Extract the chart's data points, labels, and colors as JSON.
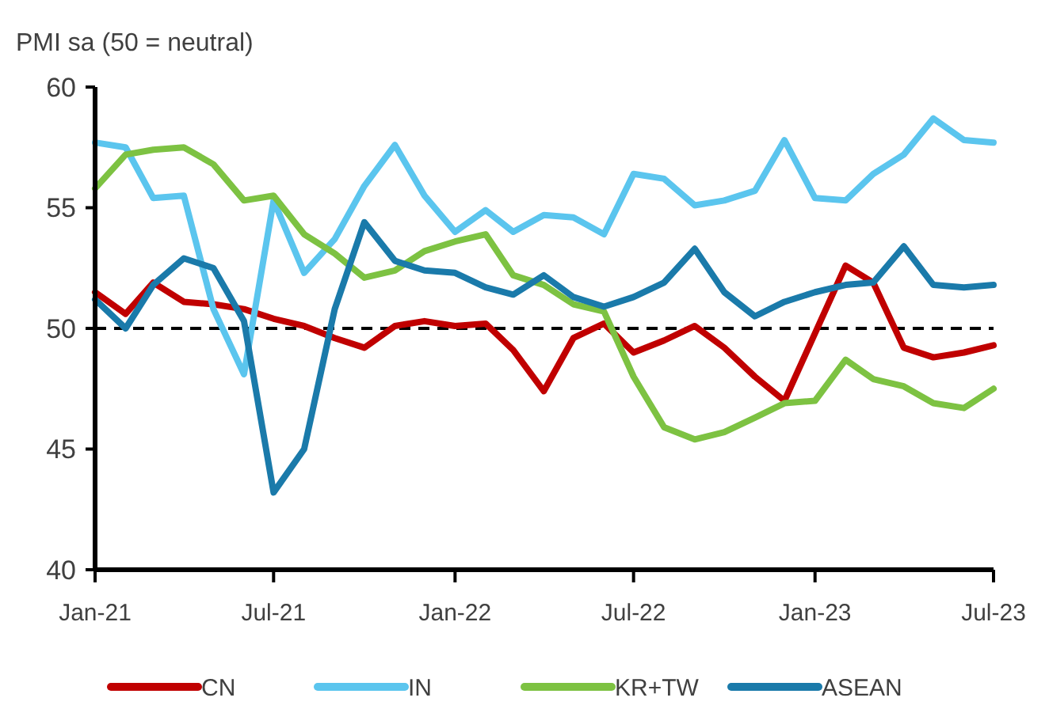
{
  "chart_data": {
    "type": "line",
    "ylabel": "PMI sa (50 = neutral)",
    "x": [
      "2021-01",
      "2021-02",
      "2021-03",
      "2021-04",
      "2021-05",
      "2021-06",
      "2021-07",
      "2021-08",
      "2021-09",
      "2021-10",
      "2021-11",
      "2021-12",
      "2022-01",
      "2022-02",
      "2022-03",
      "2022-04",
      "2022-05",
      "2022-06",
      "2022-07",
      "2022-08",
      "2022-09",
      "2022-10",
      "2022-11",
      "2022-12",
      "2023-01",
      "2023-02",
      "2023-03",
      "2023-04",
      "2023-05",
      "2023-06",
      "2023-07"
    ],
    "series": [
      {
        "name": "CN",
        "color": "#c00000",
        "values": [
          51.5,
          50.6,
          51.9,
          51.1,
          51.0,
          50.8,
          50.4,
          50.1,
          49.6,
          49.2,
          50.1,
          50.3,
          50.1,
          50.2,
          49.1,
          47.4,
          49.6,
          50.2,
          49.0,
          49.5,
          50.1,
          49.2,
          48.0,
          47.0,
          49.8,
          52.6,
          51.9,
          49.2,
          48.8,
          49.0,
          49.3
        ]
      },
      {
        "name": "IN",
        "color": "#5bc5ee",
        "values": [
          57.7,
          57.5,
          55.4,
          55.5,
          50.8,
          48.1,
          55.3,
          52.3,
          53.7,
          55.9,
          57.6,
          55.5,
          54.0,
          54.9,
          54.0,
          54.7,
          54.6,
          53.9,
          56.4,
          56.2,
          55.1,
          55.3,
          55.7,
          57.8,
          55.4,
          55.3,
          56.4,
          57.2,
          58.7,
          57.8,
          57.7
        ]
      },
      {
        "name": "KR+TW",
        "color": "#7dc242",
        "values": [
          55.8,
          57.2,
          57.4,
          57.5,
          56.8,
          55.3,
          55.5,
          53.9,
          53.1,
          52.1,
          52.4,
          53.2,
          53.6,
          53.9,
          52.2,
          51.8,
          51.0,
          50.7,
          48.0,
          45.9,
          45.4,
          45.7,
          46.3,
          46.9,
          47.0,
          48.7,
          47.9,
          47.6,
          46.9,
          46.7,
          47.5
        ]
      },
      {
        "name": "ASEAN",
        "color": "#1a7aaa",
        "values": [
          51.2,
          50.0,
          51.8,
          52.9,
          52.5,
          50.3,
          43.2,
          45.0,
          50.8,
          54.4,
          52.8,
          52.4,
          52.3,
          51.7,
          51.4,
          52.2,
          51.3,
          50.9,
          51.3,
          51.9,
          53.3,
          51.5,
          50.5,
          51.1,
          51.5,
          51.8,
          51.9,
          53.4,
          51.8,
          51.7,
          51.8
        ]
      }
    ],
    "xlim": [
      "2021-01",
      "2023-07"
    ],
    "xticks": [
      {
        "value": "2021-01",
        "label": "Jan-21"
      },
      {
        "value": "2021-07",
        "label": "Jul-21"
      },
      {
        "value": "2022-01",
        "label": "Jan-22"
      },
      {
        "value": "2022-07",
        "label": "Jul-22"
      },
      {
        "value": "2023-01",
        "label": "Jan-23"
      },
      {
        "value": "2023-07",
        "label": "Jul-23"
      }
    ],
    "ylim": [
      40,
      60
    ],
    "yticks": [
      40,
      45,
      50,
      55,
      60
    ],
    "ref_lines": [
      {
        "axis": "y",
        "value": 50,
        "color": "#000000",
        "line_style": "dashed"
      }
    ],
    "grid": false,
    "legend": "bottom",
    "marker": "none",
    "line_style": "solid"
  }
}
